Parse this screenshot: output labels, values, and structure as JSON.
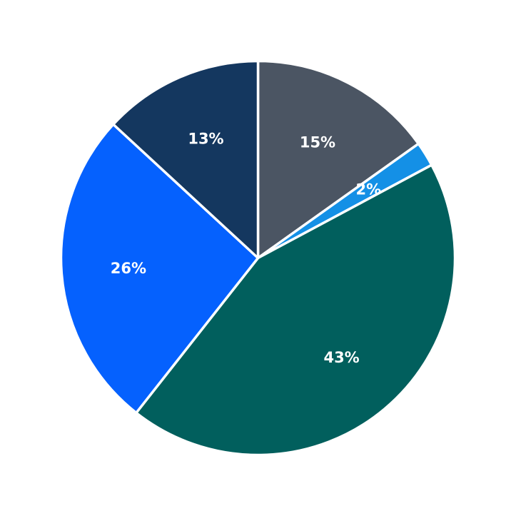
{
  "chart_data": {
    "type": "pie",
    "categories": [
      "",
      "",
      "",
      "",
      ""
    ],
    "values": [
      15,
      2,
      43,
      26,
      13
    ],
    "labels": [
      "15%",
      "2%",
      "43%",
      "26%",
      "13%"
    ],
    "colors": [
      "#4b5563",
      "#1490e6",
      "#015f5d",
      "#0561fe",
      "#14375f"
    ],
    "start_angle": "12 o'clock",
    "direction": "clockwise",
    "slice_border_color": "#ffffff",
    "legend": "none",
    "title": ""
  }
}
